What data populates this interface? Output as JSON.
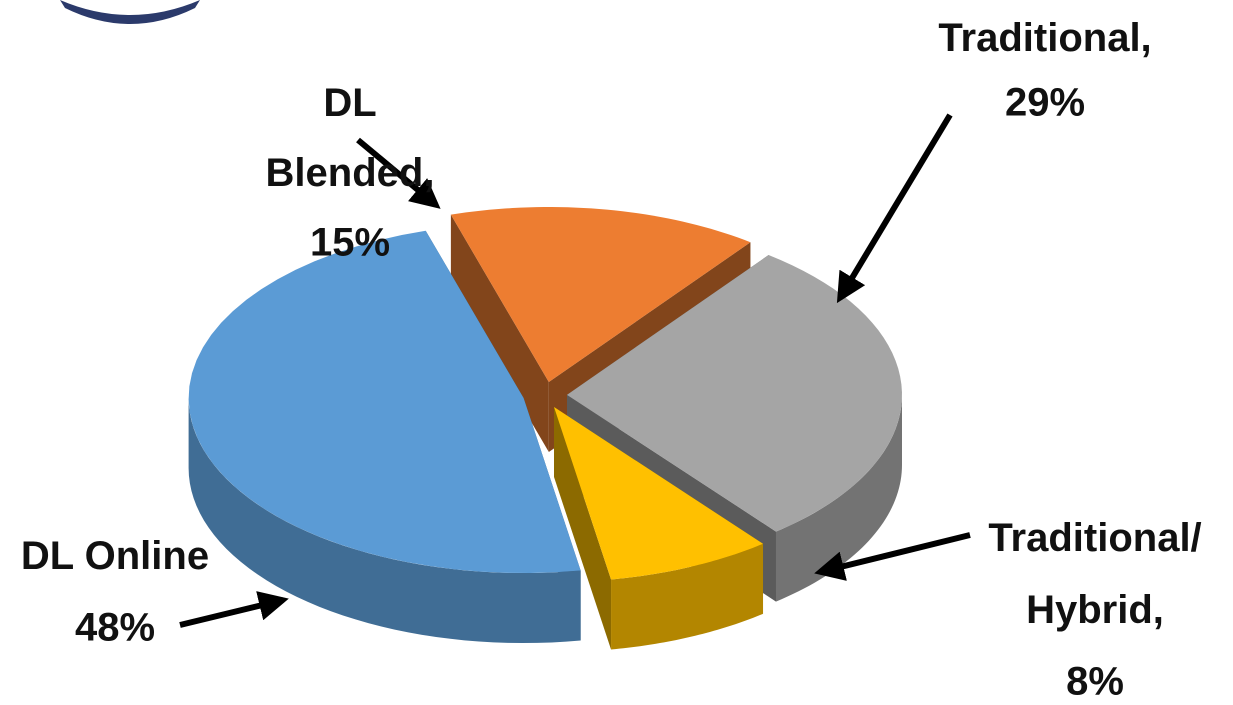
{
  "chart_data": {
    "type": "pie3d",
    "categories": [
      "DL Blended,",
      "Traditional,",
      "Traditional/ Hybrid,",
      "DL Online"
    ],
    "values": [
      15,
      29,
      8,
      48
    ],
    "value_labels": [
      "15%",
      "29%",
      "8%",
      "48%"
    ],
    "colors": [
      "#ed7d31",
      "#a5a5a5",
      "#ffc000",
      "#5b9bd5"
    ]
  }
}
